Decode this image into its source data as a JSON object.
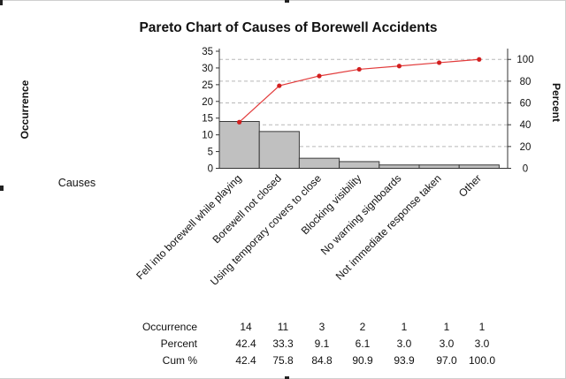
{
  "chart_data": {
    "type": "bar",
    "subtype": "pareto",
    "title": "Pareto Chart of Causes of Borewell Accidents",
    "xlabel": "Causes",
    "ylabel": "Occurrence",
    "y2label": "Percent",
    "categories": [
      "Fell into borewell while playing",
      "Borewell not closed",
      "Using temporary covers to close",
      "Blocking visibility",
      "No warning signboards",
      "Not immediate response taken",
      "Other"
    ],
    "series": [
      {
        "name": "Occurrence",
        "type": "bar",
        "values": [
          14,
          11,
          3,
          2,
          1,
          1,
          1
        ],
        "color": "#c0c0c0"
      },
      {
        "name": "Cum %",
        "type": "line",
        "values": [
          42.4,
          75.8,
          84.8,
          90.9,
          93.9,
          97.0,
          100.0
        ],
        "color": "#e23b3b"
      }
    ],
    "ylim": [
      0,
      35
    ],
    "yticks": [
      0,
      5,
      10,
      15,
      20,
      25,
      30,
      35
    ],
    "y2lim": [
      0,
      107.5
    ],
    "y2ticks": [
      0,
      20,
      40,
      60,
      80,
      100
    ],
    "grid": "horizontal-dashed",
    "table": {
      "row_labels": [
        "Occurrence",
        "Percent",
        "Cum %"
      ],
      "rows": [
        [
          "14",
          "11",
          "3",
          "2",
          "1",
          "1",
          "1"
        ],
        [
          "42.4",
          "33.3",
          "9.1",
          "6.1",
          "3.0",
          "3.0",
          "3.0"
        ],
        [
          "42.4",
          "75.8",
          "84.8",
          "90.9",
          "93.9",
          "97.0",
          "100.0"
        ]
      ]
    }
  }
}
